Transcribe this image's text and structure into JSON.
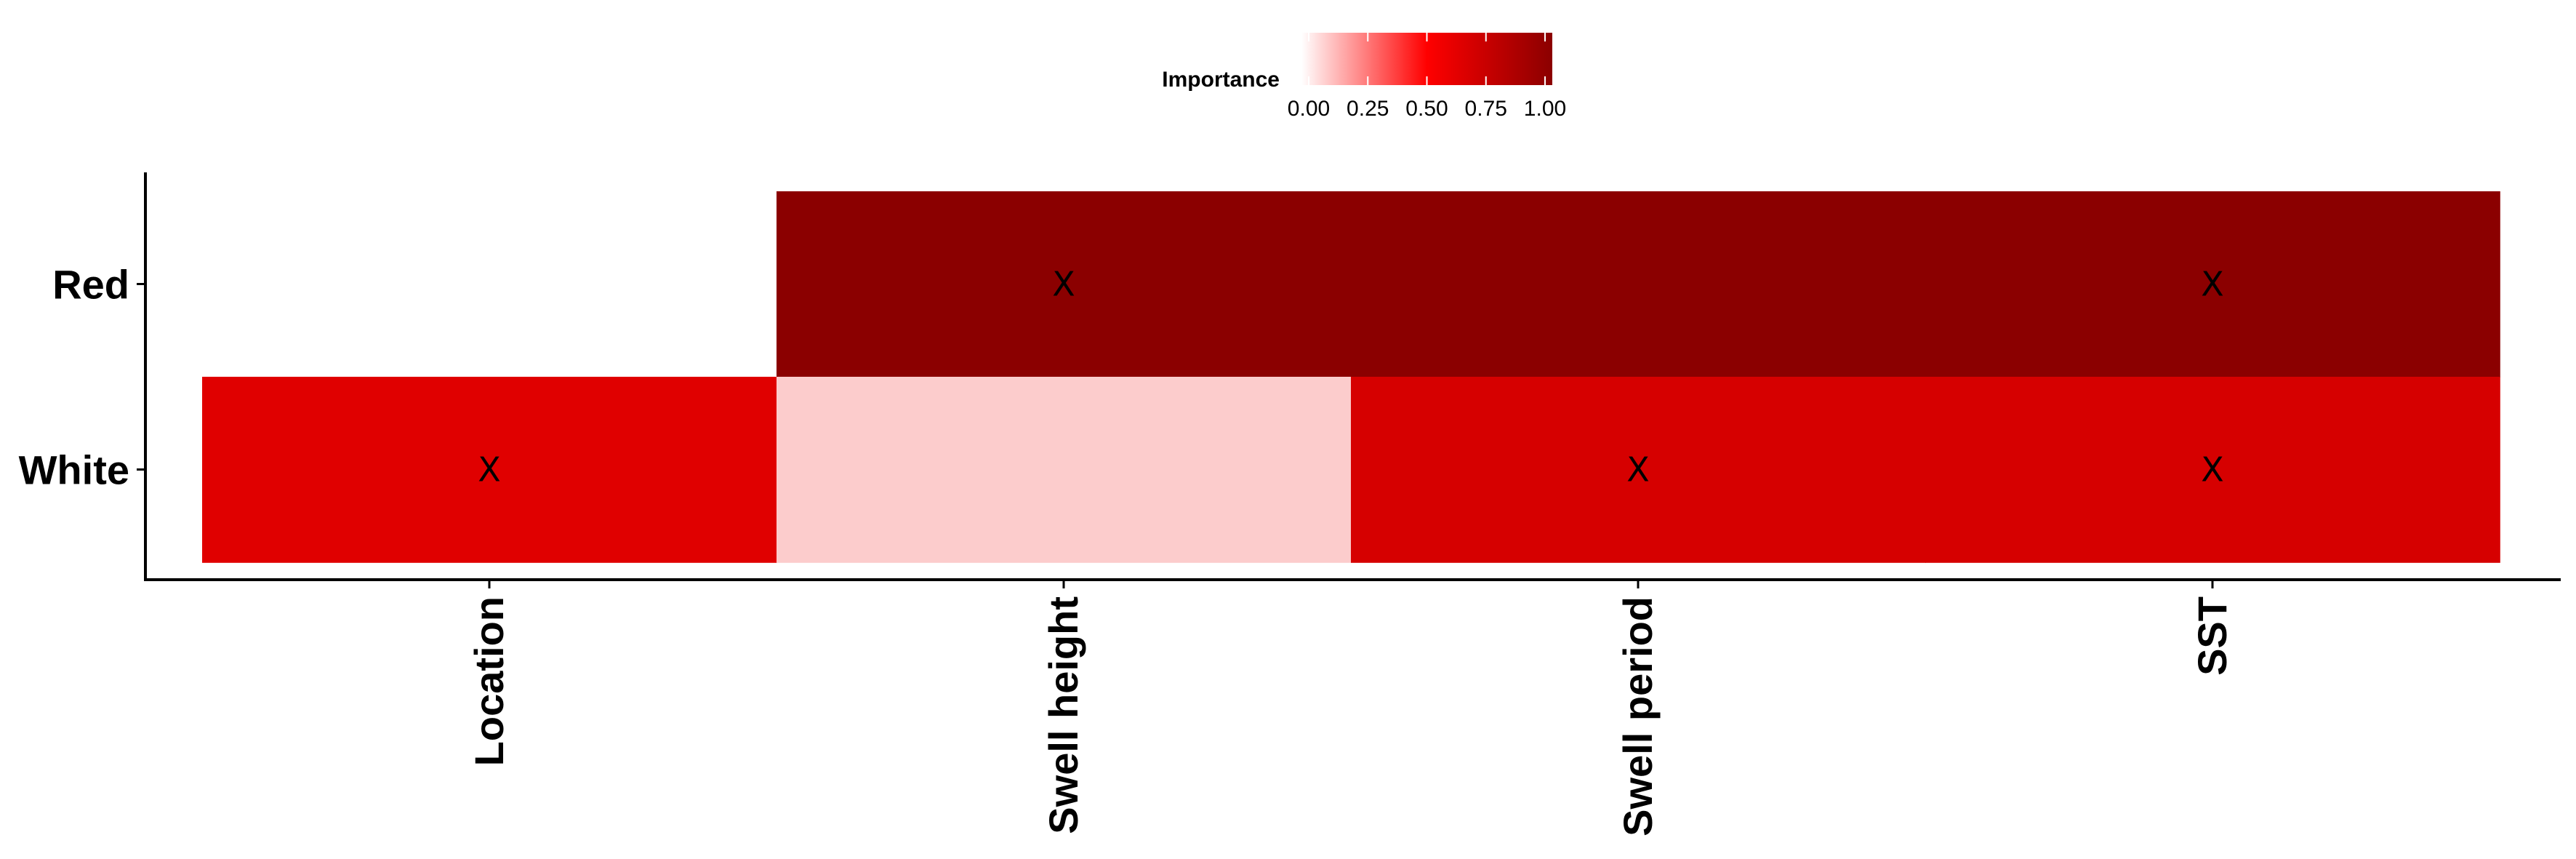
{
  "chart_data": {
    "type": "heatmap",
    "title": "",
    "xlabel": "",
    "ylabel": "",
    "x_categories": [
      "Location",
      "Swell height",
      "Swell period",
      "SST"
    ],
    "y_categories": [
      "Red",
      "White"
    ],
    "value_range": [
      0,
      1
    ],
    "cells": [
      {
        "row": "Red",
        "col": "Swell height",
        "value": 1.0,
        "color": "#8b0000",
        "mark": "X"
      },
      {
        "row": "Red",
        "col": "Swell period",
        "value": 1.0,
        "color": "#8b0000",
        "mark": ""
      },
      {
        "row": "Red",
        "col": "SST",
        "value": 1.0,
        "color": "#8b0000",
        "mark": "X"
      },
      {
        "row": "White",
        "col": "Location",
        "value": 0.5,
        "color": "#e00000",
        "mark": "X"
      },
      {
        "row": "White",
        "col": "Swell height",
        "value": 0.05,
        "color": "#fccccc",
        "mark": ""
      },
      {
        "row": "White",
        "col": "Swell period",
        "value": 0.55,
        "color": "#d60000",
        "mark": "X"
      },
      {
        "row": "White",
        "col": "SST",
        "value": 0.55,
        "color": "#d60000",
        "mark": "X"
      }
    ],
    "legend": {
      "title": "Importance",
      "position": "top",
      "ticks": [
        "0.00",
        "0.25",
        "0.50",
        "0.75",
        "1.00"
      ],
      "colors": [
        "#ffffff",
        "#ff0000",
        "#8b0000"
      ]
    },
    "grid": false
  }
}
